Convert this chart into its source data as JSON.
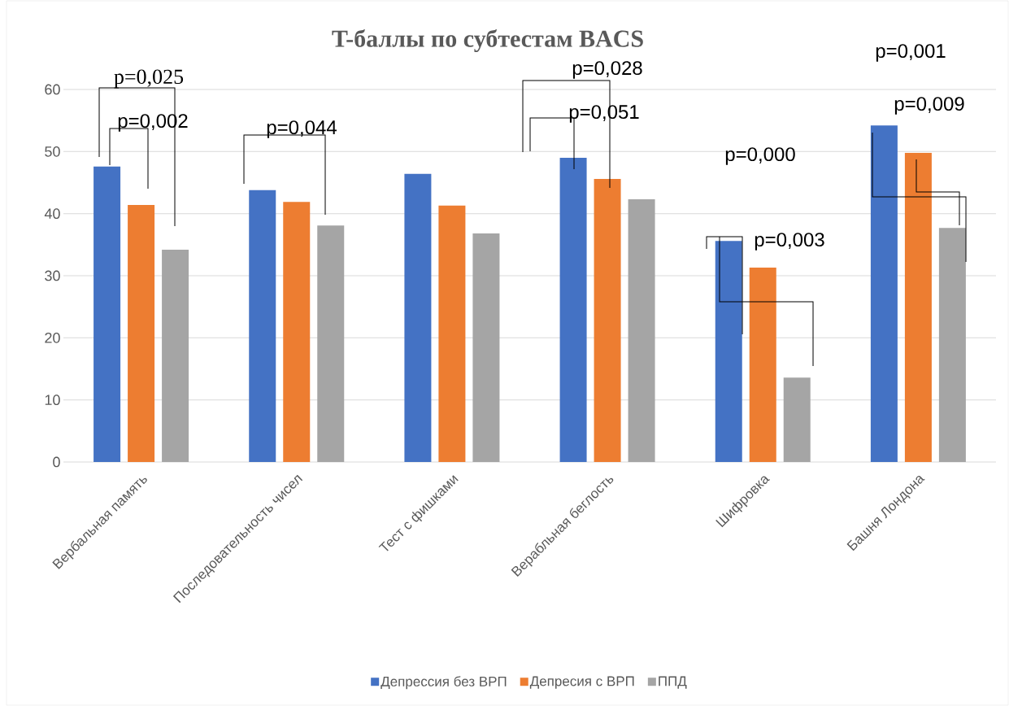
{
  "chart_data": {
    "type": "bar",
    "title": "T-баллы по субтестам BACS",
    "categories": [
      "Вербальная память",
      "Последовательность чисел",
      "Тест с фишками",
      "Верабльная беглость",
      "Шифровка",
      "Башня Лондона"
    ],
    "series": [
      {
        "name": "Депрессия без ВРП",
        "color": "#4472c4",
        "values": [
          47.6,
          43.8,
          46.4,
          49.0,
          35.6,
          54.2
        ]
      },
      {
        "name": "Депресия с ВРП",
        "color": "#ed7d31",
        "values": [
          41.4,
          41.9,
          41.3,
          45.6,
          31.3,
          49.8
        ]
      },
      {
        "name": "ППД",
        "color": "#a5a5a5",
        "values": [
          34.2,
          38.1,
          36.8,
          42.3,
          13.6,
          37.7
        ]
      }
    ],
    "ylim": [
      0,
      60
    ],
    "yticks": [
      0,
      10,
      20,
      30,
      40,
      50,
      60
    ],
    "grid": "y",
    "legend": "bottom",
    "annotations": [
      "p=0,025",
      "p=0,002",
      "p=0,044",
      "p=0,028",
      "p=0,051",
      "p=0,000",
      "p=0,003",
      "p=0,001",
      "p=0,009"
    ]
  }
}
